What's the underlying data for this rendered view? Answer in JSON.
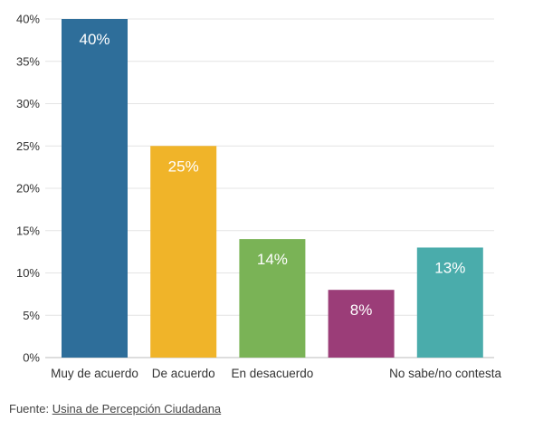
{
  "chart_data": {
    "type": "bar",
    "categories": [
      "Muy de acuerdo",
      "De acuerdo",
      "En desacuerdo",
      "",
      "No sabe/no contesta"
    ],
    "values": [
      40,
      25,
      14,
      8,
      13
    ],
    "data_labels": [
      "40%",
      "25%",
      "14%",
      "8%",
      "13%"
    ],
    "colors": [
      "#2e6e9a",
      "#f0b429",
      "#7ab356",
      "#9b3d78",
      "#4aacab"
    ],
    "ylim": [
      0,
      40
    ],
    "yticks": [
      0,
      5,
      10,
      15,
      20,
      25,
      30,
      35,
      40
    ],
    "ytick_labels": [
      "0%",
      "5%",
      "10%",
      "15%",
      "20%",
      "25%",
      "30%",
      "35%",
      "40%"
    ],
    "grid": true,
    "legend": "none",
    "title": "",
    "xlabel": "",
    "ylabel": ""
  },
  "source": {
    "prefix": "Fuente: ",
    "link_text": "Usina de Percepción Ciudadana"
  }
}
